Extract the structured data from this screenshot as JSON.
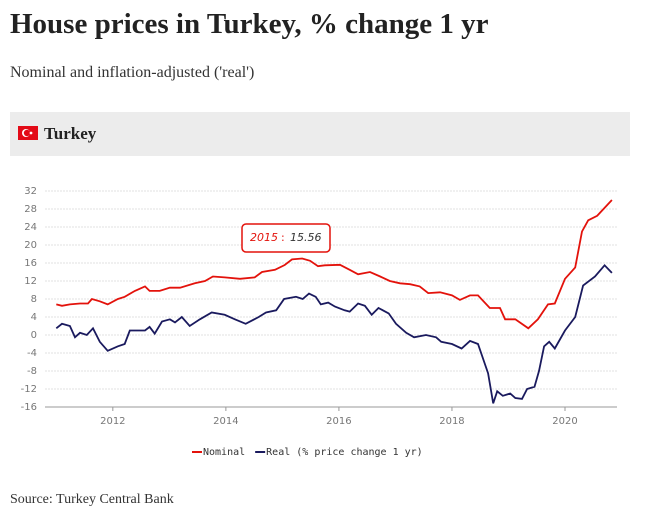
{
  "header": {
    "title": "House prices in Turkey, % change 1 yr",
    "subtitle": "Nominal and inflation-adjusted ('real')",
    "country": "Turkey"
  },
  "source": "Source: Turkey Central Bank",
  "chart_data": {
    "type": "line",
    "xlim": [
      2010.8,
      2020.92
    ],
    "xticks": [
      2012,
      2014,
      2016,
      2018,
      2020
    ],
    "ylim": [
      -16,
      32
    ],
    "yticks": [
      -16,
      -12,
      -8,
      -4,
      0,
      4,
      8,
      12,
      16,
      20,
      24,
      28,
      32
    ],
    "grid": true,
    "annotation": {
      "label": "2015",
      "value": 15.56
    },
    "series": [
      {
        "name": "Nominal",
        "color": "#e3120b",
        "x": [
          2011.0,
          2011.1,
          2011.24,
          2011.42,
          2011.56,
          2011.63,
          2011.77,
          2011.91,
          2012.09,
          2012.21,
          2012.39,
          2012.57,
          2012.65,
          2012.83,
          2013.01,
          2013.19,
          2013.45,
          2013.63,
          2013.77,
          2013.98,
          2014.25,
          2014.51,
          2014.64,
          2014.87,
          2015.04,
          2015.17,
          2015.35,
          2015.49,
          2015.63,
          2015.75,
          2016.02,
          2016.19,
          2016.34,
          2016.55,
          2016.73,
          2016.9,
          2017.08,
          2017.26,
          2017.43,
          2017.58,
          2017.79,
          2018.0,
          2018.14,
          2018.32,
          2018.46,
          2018.67,
          2018.85,
          2018.94,
          2019.12,
          2019.35,
          2019.52,
          2019.7,
          2019.82,
          2020.0,
          2020.18,
          2020.3,
          2020.41,
          2020.57,
          2020.83
        ],
        "values": [
          6.8,
          6.5,
          6.8,
          7.0,
          7.0,
          8.0,
          7.5,
          6.8,
          8.0,
          8.5,
          9.8,
          10.8,
          9.8,
          9.8,
          10.5,
          10.5,
          11.5,
          12.0,
          13.0,
          12.8,
          12.5,
          12.8,
          14.0,
          14.5,
          15.56,
          16.8,
          17.0,
          16.5,
          15.3,
          15.5,
          15.6,
          14.5,
          13.5,
          14.0,
          13.0,
          12.0,
          11.5,
          11.3,
          10.8,
          9.3,
          9.5,
          8.8,
          7.8,
          8.8,
          8.8,
          6.0,
          6.0,
          3.5,
          3.5,
          1.5,
          3.5,
          6.8,
          7.0,
          12.5,
          15.0,
          23.0,
          25.5,
          26.5,
          30.0
        ]
      },
      {
        "name": "Real (% price change 1 yr)",
        "color": "#1a1a5e",
        "x": [
          2011.0,
          2011.1,
          2011.24,
          2011.33,
          2011.42,
          2011.54,
          2011.65,
          2011.77,
          2011.91,
          2012.09,
          2012.21,
          2012.3,
          2012.57,
          2012.65,
          2012.74,
          2012.87,
          2013.01,
          2013.1,
          2013.22,
          2013.36,
          2013.54,
          2013.75,
          2013.98,
          2014.16,
          2014.35,
          2014.58,
          2014.71,
          2014.89,
          2015.03,
          2015.24,
          2015.36,
          2015.47,
          2015.59,
          2015.68,
          2015.81,
          2015.93,
          2016.1,
          2016.19,
          2016.34,
          2016.46,
          2016.58,
          2016.7,
          2016.88,
          2017.01,
          2017.19,
          2017.33,
          2017.54,
          2017.72,
          2017.81,
          2018.0,
          2018.17,
          2018.32,
          2018.46,
          2018.57,
          2018.64,
          2018.73,
          2018.8,
          2018.9,
          2019.03,
          2019.12,
          2019.24,
          2019.33,
          2019.46,
          2019.54,
          2019.63,
          2019.72,
          2019.82,
          2020.0,
          2020.18,
          2020.32,
          2020.53,
          2020.7,
          2020.83
        ],
        "values": [
          1.5,
          2.5,
          2.0,
          -0.5,
          0.5,
          0.0,
          1.5,
          -1.5,
          -3.5,
          -2.5,
          -2.0,
          1.0,
          1.0,
          1.8,
          0.3,
          3.0,
          3.5,
          2.8,
          4.0,
          2.0,
          3.5,
          5.0,
          4.5,
          3.5,
          2.5,
          4.0,
          5.0,
          5.5,
          8.0,
          8.5,
          8.0,
          9.2,
          8.5,
          6.8,
          7.2,
          6.3,
          5.5,
          5.2,
          7.0,
          6.5,
          4.5,
          6.0,
          4.8,
          2.5,
          0.5,
          -0.5,
          0.0,
          -0.5,
          -1.5,
          -2.0,
          -3.0,
          -1.3,
          -2.0,
          -6.0,
          -8.5,
          -15.2,
          -12.5,
          -13.5,
          -13.0,
          -14.0,
          -14.2,
          -12.0,
          -11.5,
          -8.0,
          -2.5,
          -1.5,
          -3.0,
          1.0,
          4.0,
          11.0,
          13.0,
          15.5,
          13.8
        ]
      }
    ]
  }
}
